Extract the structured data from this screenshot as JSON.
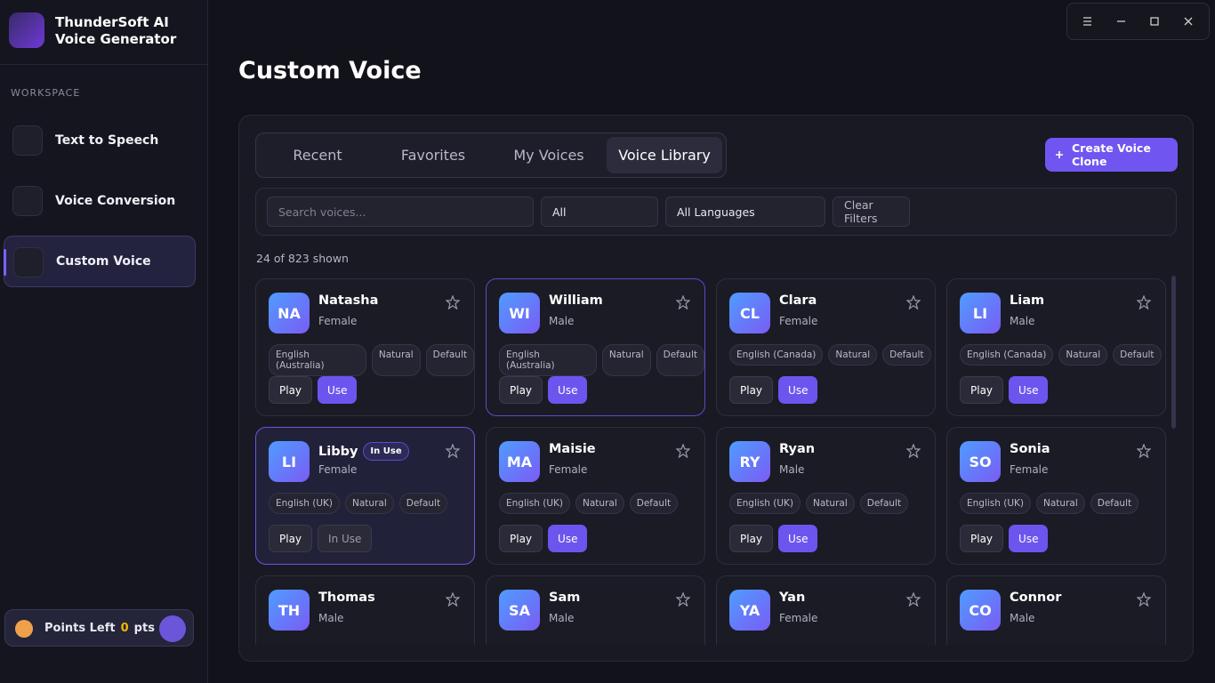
{
  "app": {
    "title_lines": [
      "ThunderSoft AI",
      "Voice Generator"
    ]
  },
  "sidebar": {
    "section": "WORKSPACE",
    "nav": [
      "Text to Speech",
      "Voice Conversion",
      "Custom Voice"
    ],
    "active": 2,
    "points": {
      "label": "Points Left",
      "value": "0",
      "unit": "pts"
    }
  },
  "page": {
    "title": "Custom Voice"
  },
  "tabs": {
    "items": [
      "Recent",
      "Favorites",
      "My Voices",
      "Voice Library"
    ],
    "active": 3
  },
  "create_button": "Create Voice Clone",
  "filters": {
    "search_placeholder": "Search voices...",
    "gender": "All",
    "language": "All Languages",
    "clear": "Clear Filters"
  },
  "count": "24 of 823 shown",
  "voices": [
    {
      "initials": "NA",
      "name": "Natasha",
      "gender": "Female",
      "tags": [
        "English (Australia)",
        "Natural",
        "Default"
      ],
      "play": "Play",
      "use": "Use"
    },
    {
      "initials": "WI",
      "name": "William",
      "gender": "Male",
      "tags": [
        "English (Australia)",
        "Natural",
        "Default"
      ],
      "play": "Play",
      "use": "Use"
    },
    {
      "initials": "CL",
      "name": "Clara",
      "gender": "Female",
      "tags": [
        "English (Canada)",
        "Natural",
        "Default"
      ],
      "play": "Play",
      "use": "Use"
    },
    {
      "initials": "LI",
      "name": "Liam",
      "gender": "Male",
      "tags": [
        "English (Canada)",
        "Natural",
        "Default"
      ],
      "play": "Play",
      "use": "Use"
    },
    {
      "initials": "LI",
      "name": "Libby",
      "badge": "In Use",
      "gender": "Female",
      "tags": [
        "English (UK)",
        "Natural",
        "Default"
      ],
      "play": "Play",
      "use": "In Use"
    },
    {
      "initials": "MA",
      "name": "Maisie",
      "gender": "Female",
      "tags": [
        "English (UK)",
        "Natural",
        "Default"
      ],
      "play": "Play",
      "use": "Use"
    },
    {
      "initials": "RY",
      "name": "Ryan",
      "gender": "Male",
      "tags": [
        "English (UK)",
        "Natural",
        "Default"
      ],
      "play": "Play",
      "use": "Use"
    },
    {
      "initials": "SO",
      "name": "Sonia",
      "gender": "Female",
      "tags": [
        "English (UK)",
        "Natural",
        "Default"
      ],
      "play": "Play",
      "use": "Use"
    },
    {
      "initials": "TH",
      "name": "Thomas",
      "gender": "Male"
    },
    {
      "initials": "SA",
      "name": "Sam",
      "gender": "Male"
    },
    {
      "initials": "YA",
      "name": "Yan",
      "gender": "Female"
    },
    {
      "initials": "CO",
      "name": "Connor",
      "gender": "Male"
    }
  ]
}
